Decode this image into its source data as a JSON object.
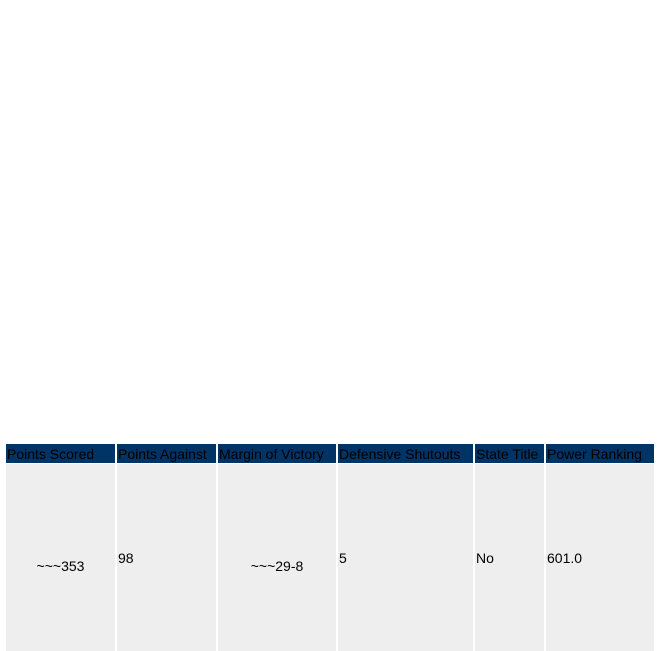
{
  "table": {
    "headers": [
      "Points Scored",
      "Points Against",
      "Margin of Victory",
      "Defensive Shutouts",
      "State Title",
      "Power Ranking"
    ],
    "rows": [
      [
        "~~~353",
        "98",
        "~~~29-8",
        "5",
        "No",
        "601.0"
      ]
    ]
  }
}
